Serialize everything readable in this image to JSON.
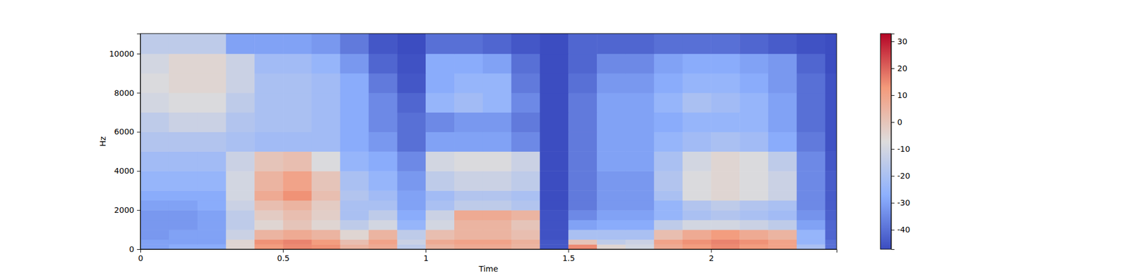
{
  "chart_data": {
    "type": "heatmap",
    "x_label": "Time",
    "y_label": "Hz",
    "x_bins": [
      0,
      0.1,
      0.2,
      0.3,
      0.4,
      0.5,
      0.6,
      0.7,
      0.8,
      0.9,
      1.0,
      1.1,
      1.2,
      1.3,
      1.4,
      1.5,
      1.6,
      1.7,
      1.8,
      1.9,
      2.0,
      2.1,
      2.2,
      2.3,
      2.4,
      2.44
    ],
    "y_bins": [
      0,
      250,
      500,
      1000,
      1500,
      2000,
      2500,
      3000,
      4000,
      5000,
      6000,
      7000,
      8000,
      9000,
      10000,
      11025
    ],
    "z": [
      [
        -30,
        -28,
        -28,
        -5,
        12,
        15,
        14,
        5,
        8,
        -15,
        5,
        8,
        8,
        5,
        -45,
        15,
        -5,
        -10,
        8,
        12,
        15,
        12,
        10,
        -20,
        -40
      ],
      [
        -30,
        -30,
        -30,
        -5,
        14,
        16,
        12,
        2,
        10,
        -12,
        8,
        10,
        10,
        6,
        -45,
        0,
        -15,
        -12,
        10,
        14,
        16,
        14,
        10,
        -25,
        -40
      ],
      [
        -32,
        -30,
        -30,
        -12,
        5,
        8,
        5,
        -5,
        5,
        -15,
        2,
        5,
        5,
        2,
        -46,
        -20,
        -20,
        -20,
        2,
        8,
        12,
        8,
        5,
        -25,
        -42
      ],
      [
        -32,
        -32,
        -30,
        -15,
        -5,
        0,
        -5,
        -15,
        -10,
        -25,
        -10,
        5,
        5,
        0,
        -46,
        -30,
        -28,
        -28,
        -15,
        -10,
        -10,
        -12,
        -15,
        -30,
        -42
      ],
      [
        -32,
        -32,
        -30,
        -15,
        -2,
        2,
        -3,
        -20,
        -15,
        -28,
        -12,
        8,
        8,
        5,
        -46,
        -35,
        -30,
        -30,
        -25,
        -20,
        -18,
        -20,
        -22,
        -33,
        -43
      ],
      [
        -30,
        -30,
        -28,
        -12,
        2,
        5,
        -2,
        -20,
        -20,
        -30,
        -20,
        -15,
        -15,
        -18,
        -47,
        -38,
        -32,
        -32,
        -25,
        -18,
        -15,
        -18,
        -20,
        -35,
        -44
      ],
      [
        -28,
        -28,
        -28,
        -10,
        8,
        14,
        2,
        -18,
        -22,
        -30,
        -22,
        -18,
        -18,
        -20,
        -47,
        -38,
        -32,
        -32,
        -20,
        -8,
        -5,
        -8,
        -12,
        -35,
        -44
      ],
      [
        -25,
        -25,
        -25,
        -10,
        5,
        10,
        0,
        -20,
        -25,
        -32,
        -15,
        -12,
        -12,
        -15,
        -47,
        -38,
        -32,
        -32,
        -18,
        -8,
        -5,
        -8,
        -12,
        -35,
        -44
      ],
      [
        -22,
        -22,
        -22,
        -12,
        0,
        2,
        -8,
        -25,
        -28,
        -35,
        -10,
        -8,
        -8,
        -12,
        -47,
        -38,
        -30,
        -30,
        -20,
        -10,
        -5,
        -8,
        -15,
        -35,
        -45
      ],
      [
        -18,
        -18,
        -18,
        -20,
        -22,
        -22,
        -22,
        -28,
        -32,
        -40,
        -30,
        -30,
        -30,
        -35,
        -47,
        -38,
        -30,
        -30,
        -25,
        -22,
        -20,
        -22,
        -28,
        -38,
        -46
      ],
      [
        -15,
        -12,
        -12,
        -18,
        -20,
        -20,
        -22,
        -28,
        -35,
        -40,
        -35,
        -32,
        -32,
        -38,
        -47,
        -38,
        -30,
        -30,
        -28,
        -25,
        -25,
        -25,
        -30,
        -40,
        -46
      ],
      [
        -10,
        -8,
        -8,
        -15,
        -20,
        -20,
        -22,
        -28,
        -35,
        -42,
        -25,
        -22,
        -25,
        -35,
        -47,
        -38,
        -30,
        -30,
        -25,
        -20,
        -22,
        -25,
        -30,
        -40,
        -46
      ],
      [
        -8,
        -5,
        -5,
        -12,
        -20,
        -20,
        -22,
        -28,
        -38,
        -45,
        -28,
        -25,
        -25,
        -38,
        -47,
        -40,
        -32,
        -32,
        -28,
        -25,
        -25,
        -28,
        -32,
        -40,
        -46
      ],
      [
        -10,
        -5,
        -5,
        -12,
        -22,
        -22,
        -25,
        -32,
        -42,
        -46,
        -28,
        -28,
        -30,
        -40,
        -47,
        -42,
        -35,
        -35,
        -30,
        -28,
        -28,
        -30,
        -32,
        -42,
        -47
      ],
      [
        -15,
        -15,
        -15,
        -30,
        -30,
        -30,
        -32,
        -38,
        -45,
        -47,
        -40,
        -40,
        -42,
        -45,
        -47,
        -42,
        -42,
        -42,
        -40,
        -40,
        -40,
        -42,
        -44,
        -46,
        -47
      ]
    ],
    "xlim": [
      0,
      2.44
    ],
    "ylim": [
      0,
      11025
    ],
    "xticks": [
      0,
      0.5,
      1,
      1.5,
      2
    ],
    "yticks": [
      0,
      2000,
      4000,
      6000,
      8000,
      10000
    ],
    "colorbar": {
      "range": [
        -47.2,
        32.9
      ],
      "ticks": [
        -40,
        -30,
        -20,
        -10,
        0,
        10,
        20,
        30
      ]
    }
  }
}
